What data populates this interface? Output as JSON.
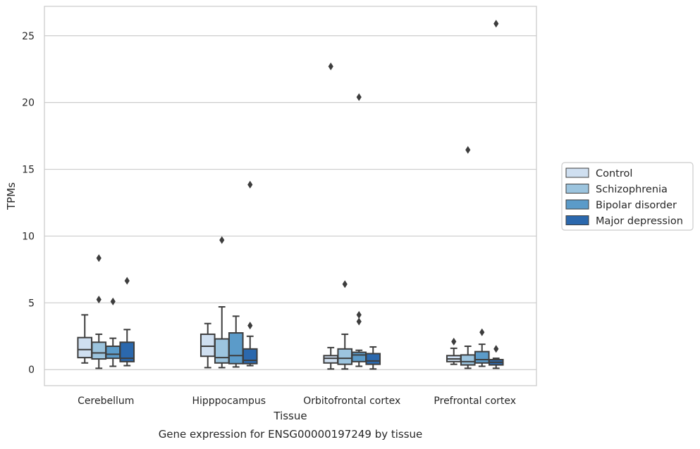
{
  "chart_data": {
    "type": "box",
    "title": "",
    "caption": "Gene expression for ENSG00000197249 by tissue",
    "xlabel": "Tissue",
    "ylabel": "TPMs",
    "ylim": [
      -1.2,
      27.2
    ],
    "yticks": [
      0,
      5,
      10,
      15,
      20,
      25
    ],
    "grid": "horizontal",
    "legend_position": "outside-right",
    "categories": [
      "Cerebellum",
      "Hipppocampus",
      "Orbitofrontal cortex",
      "Prefrontal cortex"
    ],
    "series": [
      {
        "name": "Control",
        "color": "#cfdff0",
        "boxes": [
          {
            "whislo": 0.5,
            "q1": 0.9,
            "med": 1.5,
            "q3": 2.4,
            "whishi": 4.1,
            "fliers": []
          },
          {
            "whislo": 0.15,
            "q1": 1.0,
            "med": 1.75,
            "q3": 2.65,
            "whishi": 3.45,
            "fliers": []
          },
          {
            "whislo": 0.05,
            "q1": 0.5,
            "med": 0.85,
            "q3": 1.05,
            "whishi": 1.65,
            "fliers": [
              22.7
            ]
          },
          {
            "whislo": 0.4,
            "q1": 0.6,
            "med": 0.8,
            "q3": 1.05,
            "whishi": 1.6,
            "fliers": [
              2.1
            ]
          }
        ]
      },
      {
        "name": "Schizophrenia",
        "color": "#9cc4de",
        "boxes": [
          {
            "whislo": 0.1,
            "q1": 0.8,
            "med": 1.25,
            "q3": 2.05,
            "whishi": 2.65,
            "fliers": [
              5.25,
              8.35
            ]
          },
          {
            "whislo": 0.15,
            "q1": 0.5,
            "med": 0.9,
            "q3": 2.3,
            "whishi": 4.7,
            "fliers": [
              9.7
            ]
          },
          {
            "whislo": 0.05,
            "q1": 0.4,
            "med": 0.85,
            "q3": 1.55,
            "whishi": 2.65,
            "fliers": [
              6.4
            ]
          },
          {
            "whislo": 0.1,
            "q1": 0.35,
            "med": 0.6,
            "q3": 1.1,
            "whishi": 1.75,
            "fliers": [
              16.45
            ]
          }
        ]
      },
      {
        "name": "Bipolar disorder",
        "color": "#5b9bc9",
        "boxes": [
          {
            "whislo": 0.25,
            "q1": 0.85,
            "med": 1.15,
            "q3": 1.75,
            "whishi": 2.35,
            "fliers": [
              5.1
            ]
          },
          {
            "whislo": 0.2,
            "q1": 0.45,
            "med": 1.05,
            "q3": 2.75,
            "whishi": 4.0,
            "fliers": []
          },
          {
            "whislo": 0.25,
            "q1": 0.6,
            "med": 1.1,
            "q3": 1.3,
            "whishi": 1.45,
            "fliers": [
              3.6,
              4.1,
              20.4
            ]
          },
          {
            "whislo": 0.25,
            "q1": 0.5,
            "med": 0.75,
            "q3": 1.35,
            "whishi": 1.9,
            "fliers": [
              2.8
            ]
          }
        ]
      },
      {
        "name": "Major depression",
        "color": "#2b68ad",
        "boxes": [
          {
            "whislo": 0.3,
            "q1": 0.6,
            "med": 0.85,
            "q3": 2.05,
            "whishi": 3.0,
            "fliers": [
              6.65
            ]
          },
          {
            "whislo": 0.3,
            "q1": 0.45,
            "med": 0.7,
            "q3": 1.55,
            "whishi": 2.5,
            "fliers": [
              3.3,
              13.85
            ]
          },
          {
            "whislo": 0.05,
            "q1": 0.4,
            "med": 0.65,
            "q3": 1.2,
            "whishi": 1.7,
            "fliers": []
          },
          {
            "whislo": 0.1,
            "q1": 0.35,
            "med": 0.55,
            "q3": 0.75,
            "whishi": 0.85,
            "fliers": [
              1.55,
              25.9
            ]
          }
        ]
      }
    ]
  }
}
